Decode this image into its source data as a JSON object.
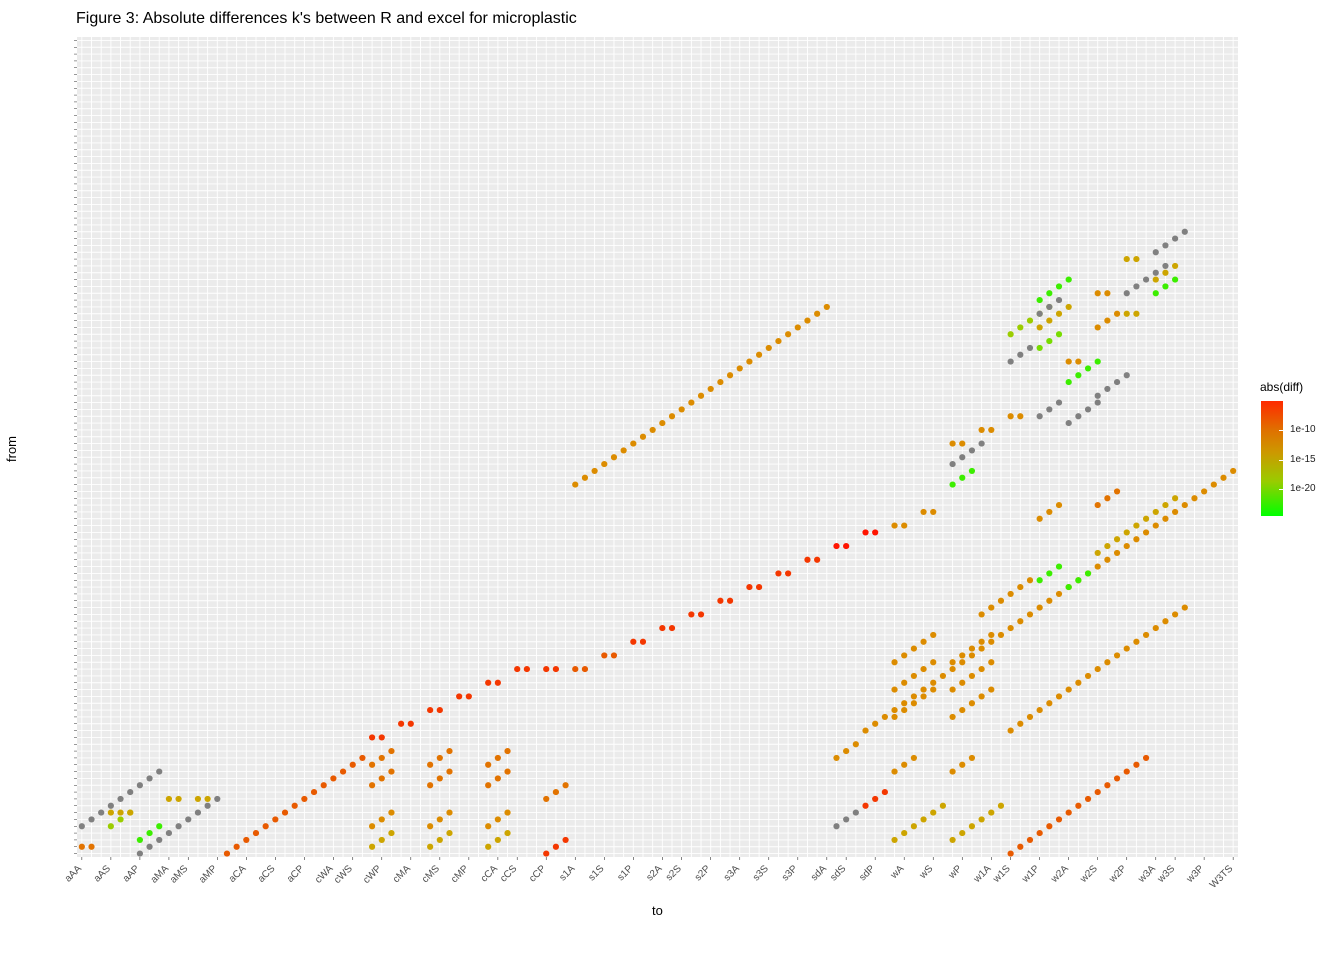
{
  "chart_data": {
    "type": "scatter",
    "title": "Figure 3: Absolute differences k's between R and excel for microplastic",
    "xlabel": "to",
    "ylabel": "from",
    "x_categories_visible": [
      "aAA",
      "aAS",
      "aAP",
      "aMA",
      "aMS",
      "aMP",
      "aCA",
      "aCS",
      "aCP",
      "cWA",
      "cWS",
      "cWP",
      "cMA",
      "cMS",
      "cMP",
      "cCA",
      "cCS",
      "cCP",
      "s1A",
      "s1S",
      "s1P",
      "s2A",
      "s2S",
      "s2P",
      "s3A",
      "s3S",
      "s3P",
      "sdA",
      "sdS",
      "sdP",
      "wA",
      "wS",
      "wP",
      "w1A",
      "w1S",
      "w1P",
      "w2A",
      "w2S",
      "w2P",
      "w3A",
      "w3S",
      "w3P",
      "W3TS"
    ],
    "x_category_count": 120,
    "y_category_count": 120,
    "legend": {
      "title": "abs(diff)",
      "ticks": [
        "1e-10",
        "1e-15",
        "1e-20"
      ],
      "colors": [
        "#00ff00",
        "#ff2a00"
      ],
      "position": "right"
    },
    "grid": true,
    "segments": [
      {
        "x0": 0,
        "y0": 4,
        "n": 9,
        "dx": 1,
        "dy": 1,
        "level": "na"
      },
      {
        "x0": 0,
        "y0": 1,
        "n": 2,
        "dx": 1,
        "dy": 0,
        "level": 7
      },
      {
        "x0": 3,
        "y0": 4,
        "n": 3,
        "dx": 1,
        "dy": 1,
        "level": 3
      },
      {
        "x0": 3,
        "y0": 6,
        "n": 3,
        "dx": 1,
        "dy": 0,
        "level": 5
      },
      {
        "x0": 6,
        "y0": 0,
        "n": 9,
        "dx": 1,
        "dy": 1,
        "level": "na"
      },
      {
        "x0": 6,
        "y0": 2,
        "n": 3,
        "dx": 1,
        "dy": 1,
        "level": 1
      },
      {
        "x0": 9,
        "y0": 8,
        "n": 2,
        "dx": 1,
        "dy": 0,
        "level": 5
      },
      {
        "x0": 12,
        "y0": 8,
        "n": 2,
        "dx": 1,
        "dy": 0,
        "level": 5
      },
      {
        "x0": 15,
        "y0": 0,
        "n": 15,
        "dx": 1,
        "dy": 1,
        "level": 8
      },
      {
        "x0": 30,
        "y0": 1,
        "n": 3,
        "dx": 1,
        "dy": 1,
        "level": 5
      },
      {
        "x0": 30,
        "y0": 4,
        "n": 3,
        "dx": 1,
        "dy": 1,
        "level": 6
      },
      {
        "x0": 30,
        "y0": 10,
        "n": 3,
        "dx": 1,
        "dy": 1,
        "level": 7
      },
      {
        "x0": 30,
        "y0": 13,
        "n": 3,
        "dx": 1,
        "dy": 1,
        "level": 7
      },
      {
        "x0": 30,
        "y0": 17,
        "n": 2,
        "dx": 1,
        "dy": 0,
        "level": 9
      },
      {
        "x0": 33,
        "y0": 19,
        "n": 2,
        "dx": 1,
        "dy": 0,
        "level": 9
      },
      {
        "x0": 36,
        "y0": 1,
        "n": 3,
        "dx": 1,
        "dy": 1,
        "level": 5
      },
      {
        "x0": 36,
        "y0": 4,
        "n": 3,
        "dx": 1,
        "dy": 1,
        "level": 6
      },
      {
        "x0": 36,
        "y0": 10,
        "n": 3,
        "dx": 1,
        "dy": 1,
        "level": 7
      },
      {
        "x0": 36,
        "y0": 13,
        "n": 3,
        "dx": 1,
        "dy": 1,
        "level": 7
      },
      {
        "x0": 36,
        "y0": 21,
        "n": 2,
        "dx": 1,
        "dy": 0,
        "level": 9
      },
      {
        "x0": 39,
        "y0": 23,
        "n": 2,
        "dx": 1,
        "dy": 0,
        "level": 9
      },
      {
        "x0": 42,
        "y0": 1,
        "n": 3,
        "dx": 1,
        "dy": 1,
        "level": 5
      },
      {
        "x0": 42,
        "y0": 4,
        "n": 3,
        "dx": 1,
        "dy": 1,
        "level": 6
      },
      {
        "x0": 42,
        "y0": 10,
        "n": 3,
        "dx": 1,
        "dy": 1,
        "level": 7
      },
      {
        "x0": 42,
        "y0": 13,
        "n": 3,
        "dx": 1,
        "dy": 1,
        "level": 7
      },
      {
        "x0": 42,
        "y0": 25,
        "n": 2,
        "dx": 1,
        "dy": 0,
        "level": 9
      },
      {
        "x0": 45,
        "y0": 27,
        "n": 2,
        "dx": 1,
        "dy": 0,
        "level": 9
      },
      {
        "x0": 48,
        "y0": 0,
        "n": 3,
        "dx": 1,
        "dy": 1,
        "level": 9
      },
      {
        "x0": 48,
        "y0": 8,
        "n": 3,
        "dx": 1,
        "dy": 1,
        "level": 7
      },
      {
        "x0": 48,
        "y0": 27,
        "n": 2,
        "dx": 1,
        "dy": 0,
        "level": 9
      },
      {
        "x0": 51,
        "y0": 27,
        "n": 2,
        "dx": 1,
        "dy": 0,
        "level": 8
      },
      {
        "x0": 51,
        "y0": 54,
        "n": 27,
        "dx": 1,
        "dy": 1,
        "level": 6
      },
      {
        "x0": 54,
        "y0": 29,
        "n": 2,
        "dx": 1,
        "dy": 0,
        "level": 8
      },
      {
        "x0": 57,
        "y0": 31,
        "n": 2,
        "dx": 1,
        "dy": 0,
        "level": 9
      },
      {
        "x0": 60,
        "y0": 33,
        "n": 2,
        "dx": 1,
        "dy": 0,
        "level": 9
      },
      {
        "x0": 63,
        "y0": 35,
        "n": 2,
        "dx": 1,
        "dy": 0,
        "level": 9
      },
      {
        "x0": 66,
        "y0": 37,
        "n": 2,
        "dx": 1,
        "dy": 0,
        "level": 9
      },
      {
        "x0": 69,
        "y0": 39,
        "n": 2,
        "dx": 1,
        "dy": 0,
        "level": 9
      },
      {
        "x0": 72,
        "y0": 41,
        "n": 2,
        "dx": 1,
        "dy": 0,
        "level": 9
      },
      {
        "x0": 75,
        "y0": 43,
        "n": 2,
        "dx": 1,
        "dy": 0,
        "level": 9
      },
      {
        "x0": 78,
        "y0": 45,
        "n": 2,
        "dx": 1,
        "dy": 0,
        "level": 10
      },
      {
        "x0": 81,
        "y0": 47,
        "n": 2,
        "dx": 1,
        "dy": 0,
        "level": 10
      },
      {
        "x0": 78,
        "y0": 4,
        "n": 3,
        "dx": 1,
        "dy": 1,
        "level": "na"
      },
      {
        "x0": 78,
        "y0": 14,
        "n": 3,
        "dx": 1,
        "dy": 1,
        "level": 6
      },
      {
        "x0": 81,
        "y0": 7,
        "n": 3,
        "dx": 1,
        "dy": 1,
        "level": 9
      },
      {
        "x0": 81,
        "y0": 18,
        "n": 40,
        "dx": 1,
        "dy": 1,
        "level": 6
      },
      {
        "x0": 84,
        "y0": 2,
        "n": 3,
        "dx": 1,
        "dy": 1,
        "level": 5
      },
      {
        "x0": 84,
        "y0": 12,
        "n": 3,
        "dx": 1,
        "dy": 1,
        "level": 6
      },
      {
        "x0": 84,
        "y0": 20,
        "n": 5,
        "dx": 1,
        "dy": 1,
        "level": 6
      },
      {
        "x0": 84,
        "y0": 24,
        "n": 5,
        "dx": 1,
        "dy": 1,
        "level": 6
      },
      {
        "x0": 84,
        "y0": 28,
        "n": 5,
        "dx": 1,
        "dy": 1,
        "level": 6
      },
      {
        "x0": 84,
        "y0": 48,
        "n": 2,
        "dx": 1,
        "dy": 0,
        "level": 6
      },
      {
        "x0": 87,
        "y0": 5,
        "n": 3,
        "dx": 1,
        "dy": 1,
        "level": 5
      },
      {
        "x0": 87,
        "y0": 50,
        "n": 2,
        "dx": 1,
        "dy": 0,
        "level": 6
      },
      {
        "x0": 90,
        "y0": 2,
        "n": 3,
        "dx": 1,
        "dy": 1,
        "level": 5
      },
      {
        "x0": 90,
        "y0": 12,
        "n": 3,
        "dx": 1,
        "dy": 1,
        "level": 6
      },
      {
        "x0": 90,
        "y0": 20,
        "n": 5,
        "dx": 1,
        "dy": 1,
        "level": 6
      },
      {
        "x0": 90,
        "y0": 24,
        "n": 5,
        "dx": 1,
        "dy": 1,
        "level": 6
      },
      {
        "x0": 90,
        "y0": 28,
        "n": 5,
        "dx": 1,
        "dy": 1,
        "level": 6
      },
      {
        "x0": 90,
        "y0": 54,
        "n": 3,
        "dx": 1,
        "dy": 1,
        "level": 1
      },
      {
        "x0": 90,
        "y0": 57,
        "n": 4,
        "dx": 1,
        "dy": 1,
        "level": "na"
      },
      {
        "x0": 90,
        "y0": 60,
        "n": 2,
        "dx": 1,
        "dy": 0,
        "level": 6
      },
      {
        "x0": 93,
        "y0": 5,
        "n": 3,
        "dx": 1,
        "dy": 1,
        "level": 5
      },
      {
        "x0": 93,
        "y0": 35,
        "n": 6,
        "dx": 1,
        "dy": 1,
        "level": 6
      },
      {
        "x0": 93,
        "y0": 62,
        "n": 2,
        "dx": 1,
        "dy": 0,
        "level": 6
      },
      {
        "x0": 96,
        "y0": 0,
        "n": 15,
        "dx": 1,
        "dy": 1,
        "level": 8
      },
      {
        "x0": 96,
        "y0": 18,
        "n": 19,
        "dx": 1,
        "dy": 1,
        "level": 6
      },
      {
        "x0": 96,
        "y0": 64,
        "n": 2,
        "dx": 1,
        "dy": 0,
        "level": 6
      },
      {
        "x0": 96,
        "y0": 72,
        "n": 3,
        "dx": 1,
        "dy": 1,
        "level": "na"
      },
      {
        "x0": 96,
        "y0": 76,
        "n": 5,
        "dx": 1,
        "dy": 1,
        "level": 3
      },
      {
        "x0": 99,
        "y0": 77,
        "n": 4,
        "dx": 1,
        "dy": 1,
        "level": 5
      },
      {
        "x0": 99,
        "y0": 74,
        "n": 3,
        "dx": 1,
        "dy": 1,
        "level": 2
      },
      {
        "x0": 99,
        "y0": 81,
        "n": 4,
        "dx": 1,
        "dy": 1,
        "level": 1
      },
      {
        "x0": 99,
        "y0": 40,
        "n": 3,
        "dx": 1,
        "dy": 1,
        "level": 1
      },
      {
        "x0": 99,
        "y0": 49,
        "n": 3,
        "dx": 1,
        "dy": 1,
        "level": 6
      },
      {
        "x0": 99,
        "y0": 64,
        "n": 3,
        "dx": 1,
        "dy": 1,
        "level": "na"
      },
      {
        "x0": 99,
        "y0": 79,
        "n": 3,
        "dx": 1,
        "dy": 1,
        "level": "na"
      },
      {
        "x0": 102,
        "y0": 69,
        "n": 4,
        "dx": 1,
        "dy": 1,
        "level": 1
      },
      {
        "x0": 102,
        "y0": 72,
        "n": 2,
        "dx": 1,
        "dy": 0,
        "level": 6
      },
      {
        "x0": 102,
        "y0": 39,
        "n": 3,
        "dx": 1,
        "dy": 1,
        "level": 1
      },
      {
        "x0": 102,
        "y0": 63,
        "n": 4,
        "dx": 1,
        "dy": 1,
        "level": "na"
      },
      {
        "x0": 105,
        "y0": 51,
        "n": 3,
        "dx": 1,
        "dy": 1,
        "level": 7
      },
      {
        "x0": 105,
        "y0": 44,
        "n": 9,
        "dx": 1,
        "dy": 1,
        "level": 5
      },
      {
        "x0": 105,
        "y0": 77,
        "n": 3,
        "dx": 1,
        "dy": 1,
        "level": 6
      },
      {
        "x0": 105,
        "y0": 82,
        "n": 2,
        "dx": 1,
        "dy": 0,
        "level": 6
      },
      {
        "x0": 105,
        "y0": 67,
        "n": 4,
        "dx": 1,
        "dy": 1,
        "level": "na"
      },
      {
        "x0": 108,
        "y0": 79,
        "n": 2,
        "dx": 1,
        "dy": 0,
        "level": 5
      },
      {
        "x0": 108,
        "y0": 87,
        "n": 2,
        "dx": 1,
        "dy": 0,
        "level": 5
      },
      {
        "x0": 108,
        "y0": 82,
        "n": 5,
        "dx": 1,
        "dy": 1,
        "level": "na"
      },
      {
        "x0": 111,
        "y0": 88,
        "n": 4,
        "dx": 1,
        "dy": 1,
        "level": "na"
      },
      {
        "x0": 111,
        "y0": 84,
        "n": 3,
        "dx": 1,
        "dy": 1,
        "level": 5
      },
      {
        "x0": 111,
        "y0": 82,
        "n": 3,
        "dx": 1,
        "dy": 1,
        "level": 1
      }
    ]
  }
}
